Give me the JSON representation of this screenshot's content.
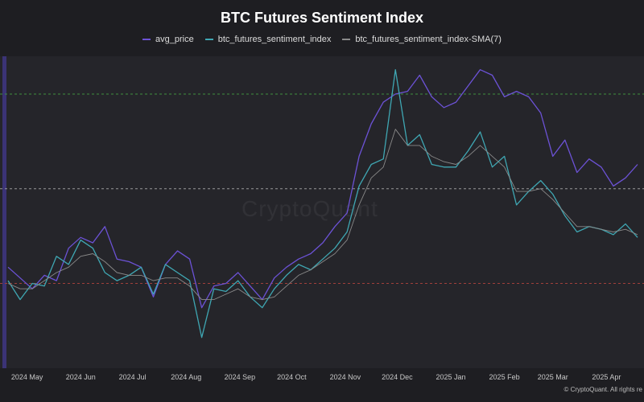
{
  "title": "BTC Futures Sentiment Index",
  "watermark": "CryptoQuant",
  "credit": "© CryptoQuant. All rights re",
  "legend": [
    {
      "name": "avg_price",
      "color": "#6c52d6"
    },
    {
      "name": "btc_futures_sentiment_index",
      "color": "#3fa7b3"
    },
    {
      "name": "btc_futures_sentiment_index-SMA(7)",
      "color": "#8a8a8a"
    }
  ],
  "chart_data": {
    "type": "line",
    "title": "BTC Futures Sentiment Index",
    "x": [
      "2024-04-20",
      "2024-04-27",
      "2024-05-04",
      "2024-05-11",
      "2024-05-18",
      "2024-05-25",
      "2024-06-01",
      "2024-06-08",
      "2024-06-15",
      "2024-06-22",
      "2024-06-29",
      "2024-07-06",
      "2024-07-13",
      "2024-07-20",
      "2024-07-27",
      "2024-08-03",
      "2024-08-10",
      "2024-08-17",
      "2024-08-24",
      "2024-08-31",
      "2024-09-07",
      "2024-09-14",
      "2024-09-21",
      "2024-09-28",
      "2024-10-05",
      "2024-10-12",
      "2024-10-19",
      "2024-10-26",
      "2024-11-02",
      "2024-11-09",
      "2024-11-16",
      "2024-11-23",
      "2024-11-30",
      "2024-12-07",
      "2024-12-14",
      "2024-12-21",
      "2024-12-28",
      "2025-01-04",
      "2025-01-11",
      "2025-01-18",
      "2025-01-25",
      "2025-02-01",
      "2025-02-08",
      "2025-02-15",
      "2025-02-22",
      "2025-03-01",
      "2025-03-08",
      "2025-03-15",
      "2025-03-22",
      "2025-03-29",
      "2025-04-05",
      "2025-04-12",
      "2025-04-19"
    ],
    "x_ticks": [
      "2024 May",
      "2024 Jun",
      "2024 Jul",
      "2024 Aug",
      "2024 Sep",
      "2024 Oct",
      "2024 Nov",
      "2024 Dec",
      "2025 Jan",
      "2025 Feb",
      "2025 Mar",
      "2025 Apr"
    ],
    "reference_lines": [
      {
        "value": 0.99,
        "color": "#3f8f3f"
      },
      {
        "value": 0.64,
        "color": "#9a9a9a"
      },
      {
        "value": 0.29,
        "color": "#a0403a"
      }
    ],
    "y_range_hint": [
      0.0,
      1.1
    ],
    "series": [
      {
        "name": "avg_price",
        "color": "#6c52d6",
        "values": [
          0.35,
          0.31,
          0.27,
          0.32,
          0.3,
          0.42,
          0.46,
          0.44,
          0.5,
          0.38,
          0.37,
          0.35,
          0.24,
          0.36,
          0.41,
          0.38,
          0.2,
          0.28,
          0.29,
          0.33,
          0.28,
          0.23,
          0.31,
          0.35,
          0.38,
          0.4,
          0.44,
          0.5,
          0.55,
          0.76,
          0.88,
          0.96,
          0.99,
          1.0,
          1.06,
          0.98,
          0.94,
          0.96,
          1.02,
          1.08,
          1.06,
          0.98,
          1.0,
          0.98,
          0.92,
          0.76,
          0.82,
          0.7,
          0.75,
          0.72,
          0.65,
          0.68,
          0.73
        ]
      },
      {
        "name": "btc_futures_sentiment_index",
        "color": "#3fa7b3",
        "values": [
          0.3,
          0.23,
          0.29,
          0.28,
          0.39,
          0.36,
          0.45,
          0.42,
          0.33,
          0.3,
          0.32,
          0.35,
          0.25,
          0.36,
          0.33,
          0.3,
          0.09,
          0.27,
          0.26,
          0.3,
          0.24,
          0.2,
          0.27,
          0.32,
          0.36,
          0.34,
          0.38,
          0.42,
          0.48,
          0.65,
          0.73,
          0.75,
          1.08,
          0.8,
          0.84,
          0.73,
          0.72,
          0.72,
          0.78,
          0.85,
          0.72,
          0.76,
          0.58,
          0.63,
          0.67,
          0.62,
          0.54,
          0.48,
          0.5,
          0.49,
          0.47,
          0.51,
          0.46
        ]
      },
      {
        "name": "btc_futures_sentiment_index-SMA(7)",
        "color": "#8a8a8a",
        "values": [
          0.29,
          0.27,
          0.27,
          0.3,
          0.33,
          0.35,
          0.39,
          0.4,
          0.37,
          0.33,
          0.32,
          0.32,
          0.3,
          0.31,
          0.31,
          0.28,
          0.23,
          0.23,
          0.25,
          0.27,
          0.24,
          0.23,
          0.24,
          0.28,
          0.32,
          0.34,
          0.37,
          0.4,
          0.45,
          0.58,
          0.68,
          0.72,
          0.86,
          0.8,
          0.8,
          0.76,
          0.74,
          0.73,
          0.76,
          0.8,
          0.76,
          0.72,
          0.63,
          0.63,
          0.64,
          0.6,
          0.55,
          0.5,
          0.5,
          0.49,
          0.48,
          0.49,
          0.47
        ]
      }
    ]
  }
}
